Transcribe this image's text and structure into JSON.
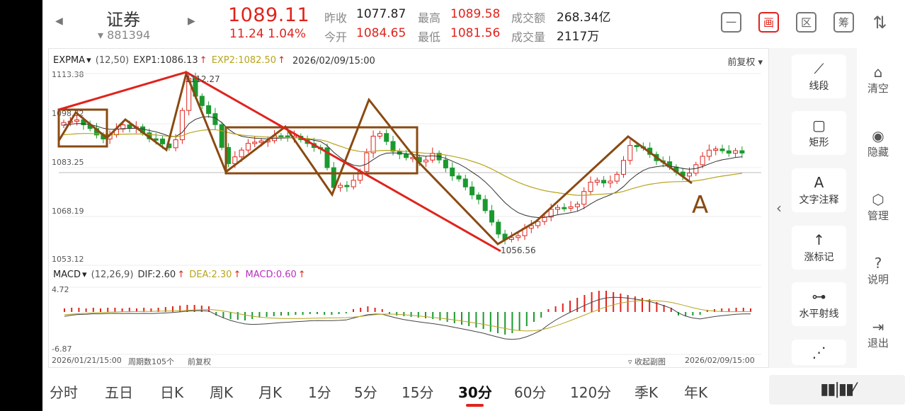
{
  "header": {
    "prev_arrow": "◀",
    "next_arrow": "▶",
    "name": "证券",
    "code": "881394",
    "price": "1089.11",
    "change": "11.24  1.04%",
    "quote": [
      {
        "label": "昨收",
        "value": "1077.87",
        "color": "blk"
      },
      {
        "label": "最高",
        "value": "1089.58",
        "color": "red"
      },
      {
        "label": "成交额",
        "value": "268.34亿",
        "color": "blk"
      },
      {
        "label": "今开",
        "value": "1084.65",
        "color": "red"
      },
      {
        "label": "最低",
        "value": "1081.56",
        "color": "red"
      },
      {
        "label": "成交量",
        "value": "2117万",
        "color": "blk"
      }
    ],
    "toolbar": [
      "一",
      "画",
      "区",
      "筹",
      "⇅"
    ]
  },
  "main": {
    "indicator": "EXPMA",
    "params": "(12,50)",
    "exp1": "EXP1:1086.13",
    "exp2": "EXP2:1082.50",
    "datetime": "2026/02/09/15:00",
    "adjust": "前复权",
    "y_labels": [
      "1113.38",
      "1098.32",
      "1083.25",
      "1068.19",
      "1053.12"
    ],
    "high_label": "1112.27",
    "low_label": "1056.56",
    "annotation": "A"
  },
  "sub": {
    "indicator": "MACD",
    "params": "(12,26,9)",
    "dif": "DIF:2.60",
    "dea": "DEA:2.30",
    "macd": "MACD:0.60",
    "top": "4.72",
    "bottom": "-6.87"
  },
  "footer": {
    "start": "2026/01/21/15:00",
    "period": "周期数105个",
    "adjust": "前复权",
    "collapse": "收起副图",
    "end": "2026/02/09/15:00"
  },
  "tools": [
    {
      "icon": "⟋",
      "label": "线段"
    },
    {
      "icon": "▢",
      "label": "矩形"
    },
    {
      "icon": "A",
      "label": "文字注释"
    },
    {
      "icon": "↑",
      "label": "涨标记"
    },
    {
      "icon": "⊶",
      "label": "水平射线"
    },
    {
      "icon": "⋰",
      "label": ""
    }
  ],
  "side": [
    {
      "icon": "⌂",
      "label": "清空"
    },
    {
      "icon": "◉",
      "label": "隐藏"
    },
    {
      "icon": "⬡",
      "label": "管理"
    },
    {
      "icon": "?",
      "label": "说明"
    },
    {
      "icon": "⇥",
      "label": "退出"
    }
  ],
  "tabs": [
    "分时",
    "五日",
    "日K",
    "周K",
    "月K",
    "1分",
    "5分",
    "15分",
    "30分",
    "60分",
    "120分",
    "季K",
    "年K"
  ],
  "active_tab": "30分",
  "more": "▮▮|▮▮⁄",
  "colors": {
    "up": "#e0231c",
    "down": "#1a9a2e",
    "exp1": "#333333",
    "exp2": "#b8a41c",
    "draw": "#8a4a12"
  }
}
